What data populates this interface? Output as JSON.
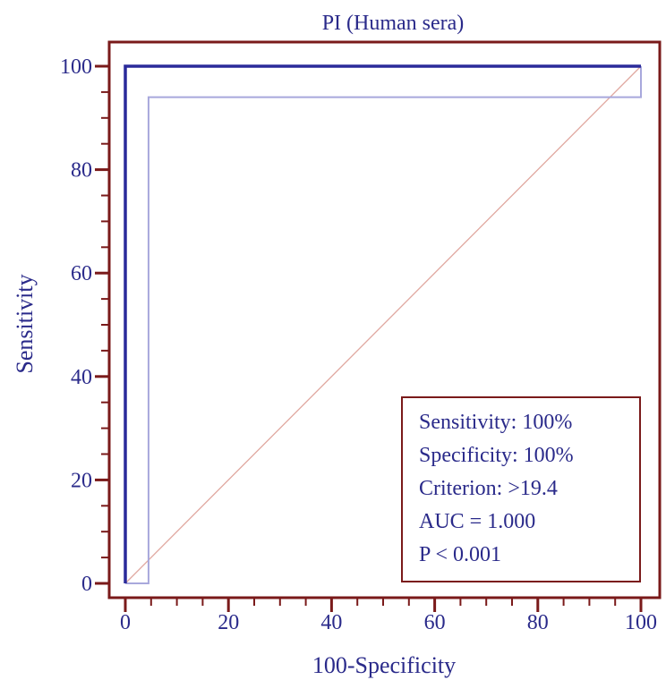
{
  "chart_data": {
    "type": "line",
    "title": "PI (Human sera)",
    "xlabel": "100-Specificity",
    "ylabel": "Sensitivity",
    "xlim": [
      0,
      100
    ],
    "ylim": [
      0,
      100
    ],
    "x_ticks": [
      0,
      20,
      40,
      60,
      80,
      100
    ],
    "y_ticks": [
      0,
      20,
      40,
      60,
      80,
      100
    ],
    "x_minor_step": 5,
    "y_minor_step": 5,
    "grid": false,
    "series": [
      {
        "role": "roc-curve",
        "color": "#2a2a9a",
        "x": [
          0,
          0,
          100
        ],
        "y": [
          0,
          100,
          100
        ]
      },
      {
        "role": "confidence-bound",
        "color": "#a8a8dc",
        "x": [
          0,
          4.5,
          4.5,
          100,
          100
        ],
        "y": [
          0,
          0,
          94,
          94,
          100
        ]
      },
      {
        "role": "reference-diagonal",
        "color": "#e0a8a0",
        "x": [
          0,
          100
        ],
        "y": [
          0,
          100
        ]
      }
    ],
    "stats_box": {
      "placement": "bottom-right",
      "lines": [
        "Sensitivity: 100%",
        "Specificity: 100%",
        "Criterion: >19.4",
        "AUC = 1.000",
        "P < 0.001"
      ]
    },
    "colors": {
      "frame": "#7a1a1a",
      "text": "#2a2a8a"
    }
  }
}
